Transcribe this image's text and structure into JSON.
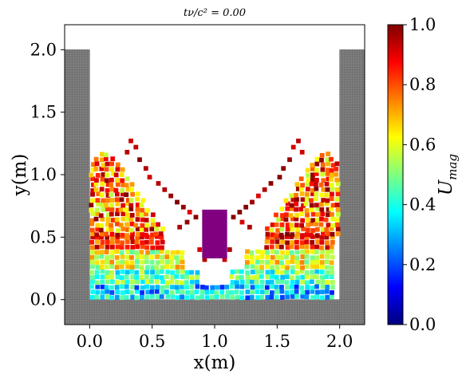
{
  "chart_data": {
    "type": "scatter",
    "title": "tν/c² = 0.00",
    "xlabel": "x(m)",
    "ylabel": "y(m)",
    "xlim": [
      -0.2,
      2.2
    ],
    "ylim": [
      -0.2,
      2.2
    ],
    "x_ticks": [
      "0.0",
      "0.5",
      "1.0",
      "1.5",
      "2.0"
    ],
    "y_ticks": [
      "0.0",
      "0.5",
      "1.0",
      "1.5",
      "2.0"
    ],
    "colorbar": {
      "label": "U_mag",
      "label_main": "U",
      "label_sub": "mag",
      "range": [
        0.0,
        1.0
      ],
      "ticks": [
        "0.0",
        "0.2",
        "0.4",
        "0.6",
        "0.8",
        "1.0"
      ],
      "colormap": "jet"
    },
    "boundary": {
      "color": "#808080",
      "walls": [
        {
          "name": "left-wall",
          "x": [
            -0.2,
            0.0
          ],
          "y": [
            -0.2,
            2.0
          ]
        },
        {
          "name": "right-wall",
          "x": [
            2.0,
            2.2
          ],
          "y": [
            -0.2,
            2.0
          ]
        },
        {
          "name": "floor",
          "x": [
            -0.2,
            2.2
          ],
          "y": [
            -0.2,
            0.0
          ]
        }
      ]
    },
    "obstacle": {
      "color": "#800080",
      "x": [
        0.9,
        1.1
      ],
      "y": [
        0.33,
        0.72
      ]
    },
    "particle_spacing": 0.04,
    "particle_groups": [
      {
        "name": "left-fluid-column",
        "x_range": [
          0.02,
          0.58
        ],
        "y_profile": [
          1.1,
          1.13,
          1.17,
          1.2,
          1.14,
          1.1,
          1.06,
          1.0,
          0.95,
          0.88,
          0.82,
          0.76,
          0.7,
          0.64,
          0.58
        ]
      },
      {
        "name": "right-fluid-column",
        "x_range": [
          1.42,
          1.98
        ],
        "y_profile": [
          0.58,
          0.64,
          0.7,
          0.76,
          0.82,
          0.88,
          0.95,
          1.0,
          1.06,
          1.1,
          1.14,
          1.2,
          1.17,
          1.13,
          1.1
        ]
      },
      {
        "name": "bottom-fluid-layer",
        "x_range": [
          0.02,
          1.98
        ],
        "y_range": [
          0.02,
          0.5
        ]
      }
    ],
    "velocity_model": "U increases with height; bottom layer near 0.2–0.5, upper layers near 0.8–1.0, jets near obstacle top ~1.0"
  }
}
